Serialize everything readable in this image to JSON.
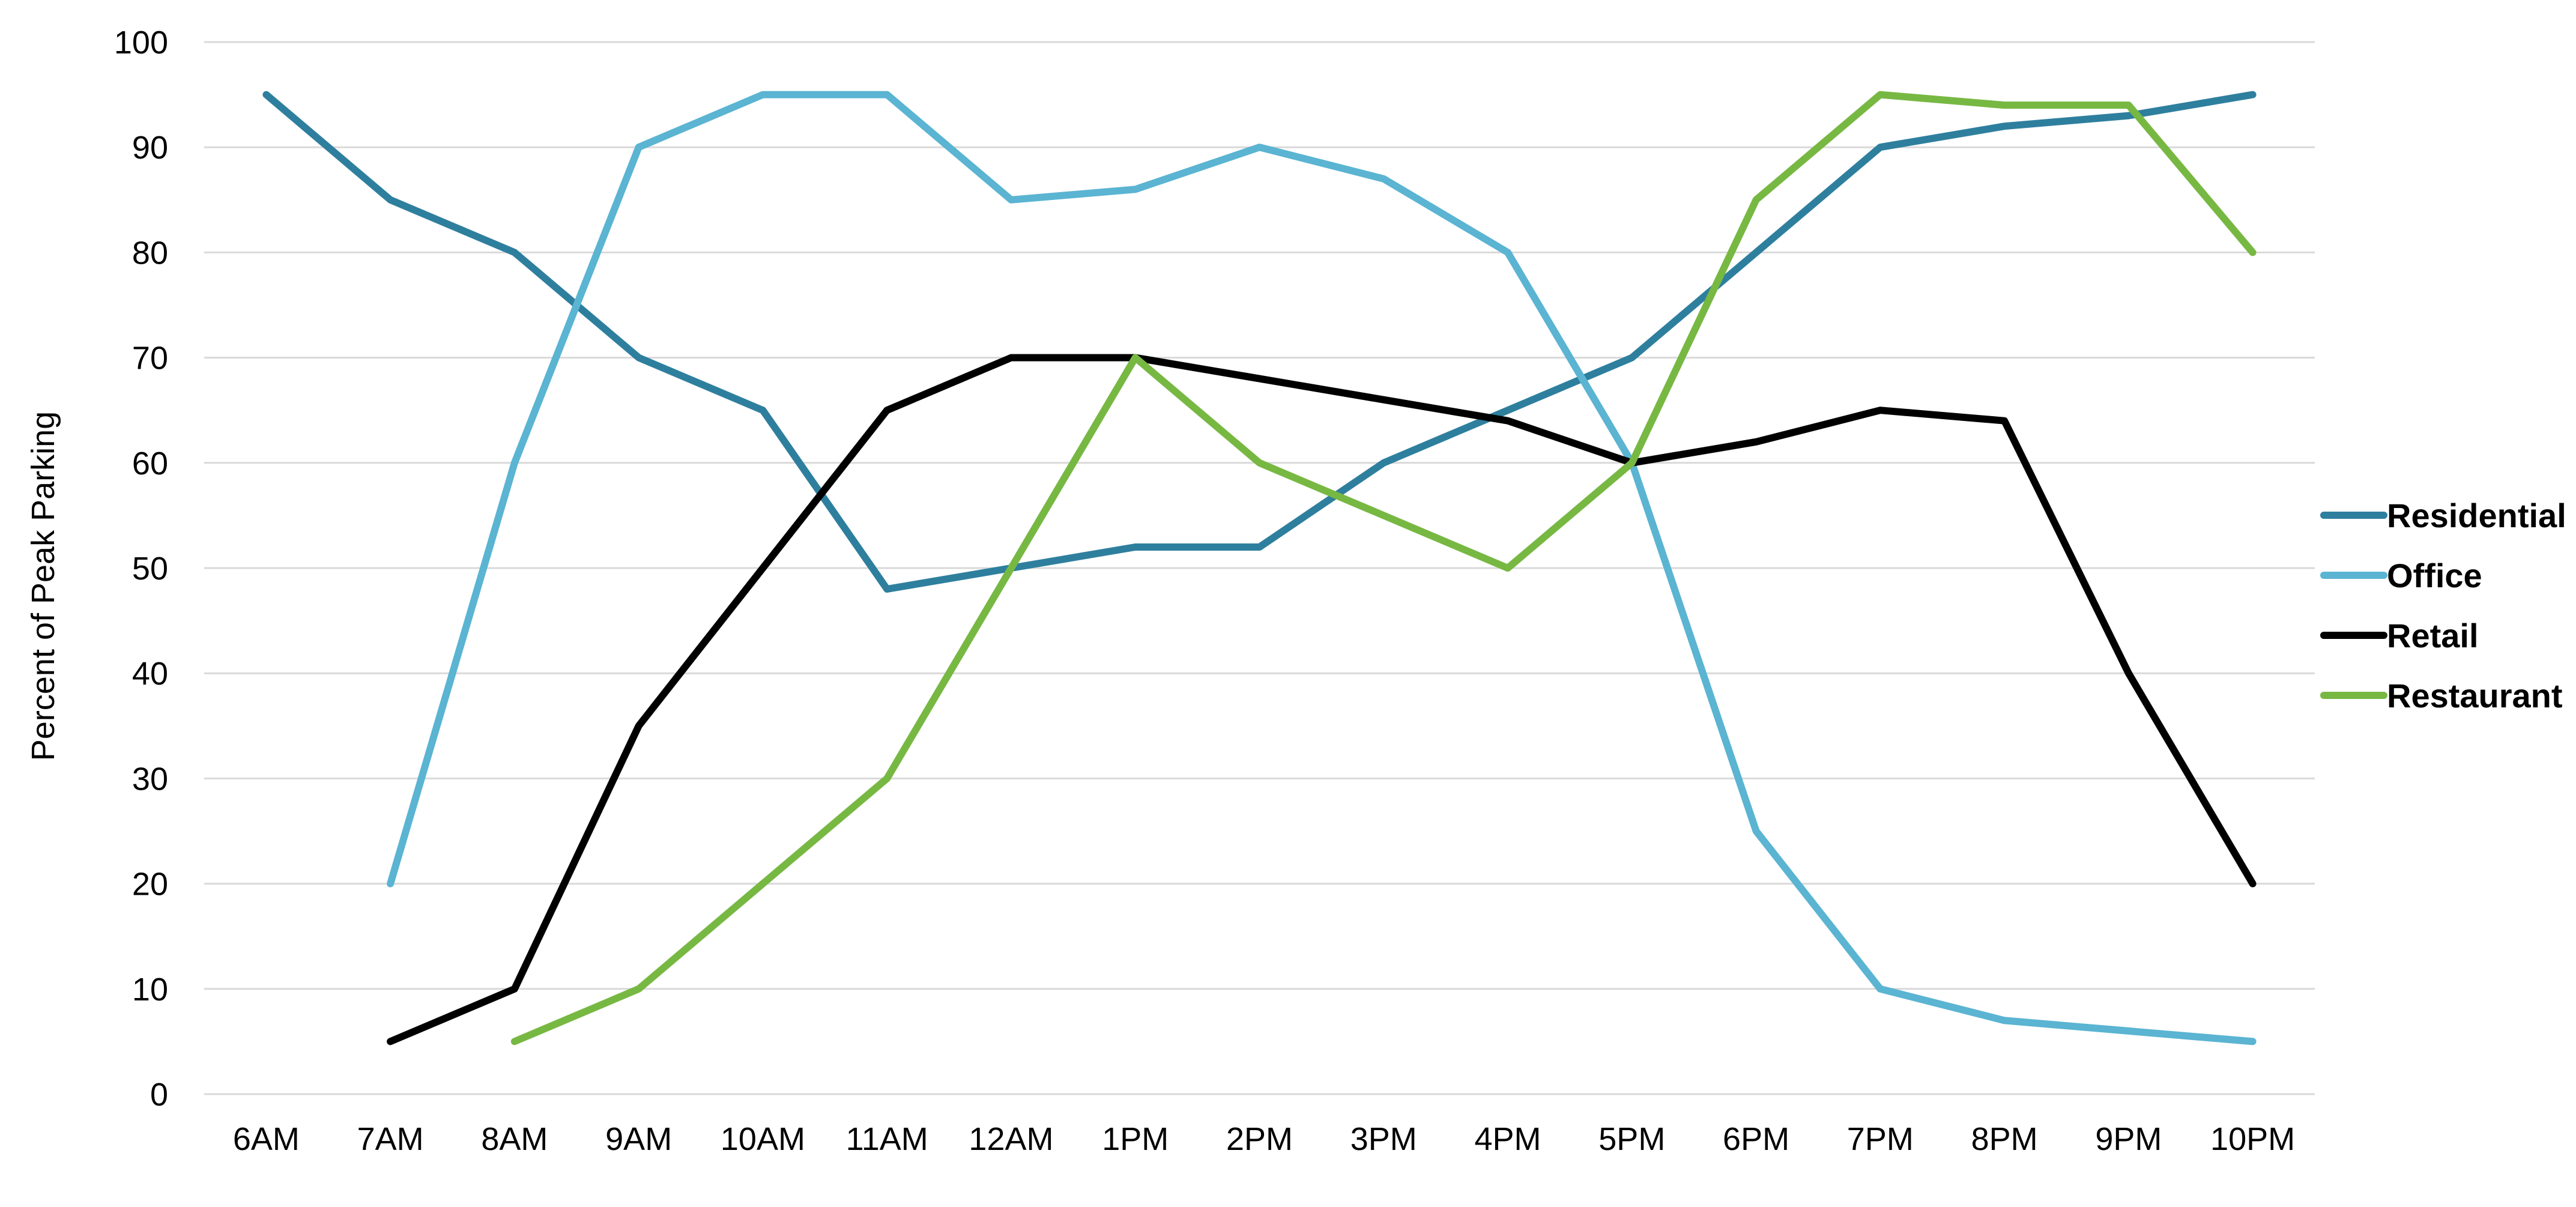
{
  "chart_data": {
    "type": "line",
    "title": "",
    "xlabel": "",
    "ylabel": "Percent of Peak Parking",
    "categories": [
      "6AM",
      "7AM",
      "8AM",
      "9AM",
      "10AM",
      "11AM",
      "12AM",
      "1PM",
      "2PM",
      "3PM",
      "4PM",
      "5PM",
      "6PM",
      "7PM",
      "8PM",
      "9PM",
      "10PM"
    ],
    "ylim": [
      0,
      100
    ],
    "yticks": [
      0,
      10,
      20,
      30,
      40,
      50,
      60,
      70,
      80,
      90,
      100
    ],
    "grid": true,
    "legend_position": "right",
    "series": [
      {
        "name": "Residential",
        "color": "#2e7f9e",
        "values": [
          95,
          85,
          80,
          70,
          65,
          48,
          50,
          52,
          52,
          60,
          65,
          70,
          80,
          90,
          92,
          93,
          95
        ]
      },
      {
        "name": "Office",
        "color": "#5ab4d2",
        "values": [
          null,
          20,
          60,
          90,
          95,
          95,
          85,
          86,
          90,
          87,
          80,
          60,
          25,
          10,
          7,
          6,
          5
        ]
      },
      {
        "name": "Retail",
        "color": "#000000",
        "values": [
          null,
          5,
          10,
          35,
          50,
          65,
          70,
          70,
          68,
          66,
          64,
          60,
          62,
          65,
          64,
          40,
          20
        ]
      },
      {
        "name": "Restaurant",
        "color": "#77b843",
        "values": [
          null,
          null,
          5,
          10,
          20,
          30,
          50,
          70,
          60,
          55,
          50,
          60,
          85,
          95,
          94,
          94,
          80
        ]
      }
    ]
  }
}
